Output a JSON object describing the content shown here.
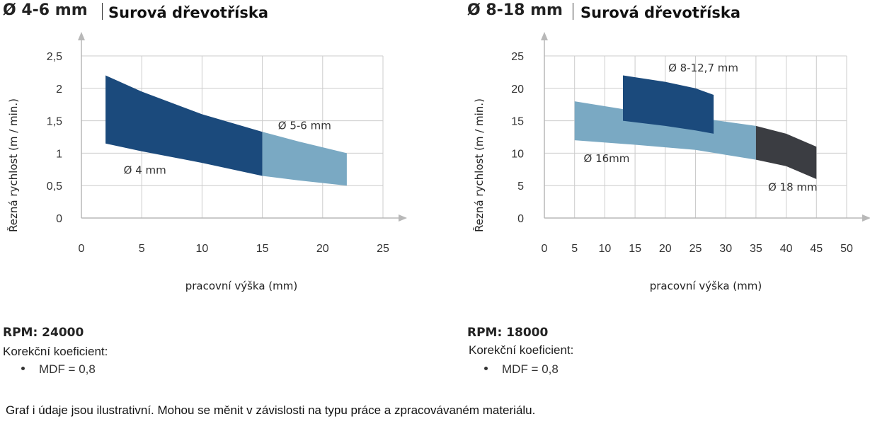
{
  "left": {
    "diameter": "Ø 4-6 mm",
    "material": "Surová dřevotříska",
    "rpm": "RPM: 24000",
    "coef_label": "Korekční koeficient:",
    "coef_items": [
      "MDF = 0,8"
    ]
  },
  "right": {
    "diameter": "Ø 8-18 mm",
    "material": "Surová dřevotříska",
    "rpm": "RPM: 18000",
    "coef_label": "Korekční koeficient:",
    "coef_items": [
      "MDF = 0,8"
    ]
  },
  "footnote": "Graf i údaje jsou ilustrativní. Mohou se měnit v závislosti na typu práce a zpracovávaném materiálu.",
  "colors": {
    "dark_blue": "#1b4a7c",
    "light_blue": "#7aa9c3",
    "dark_gray": "#3b3d42",
    "grid": "#cccccc",
    "axis": "#b8b8b8"
  },
  "chart_data": [
    {
      "type": "area",
      "xlabel": "pracovní výška  (mm)",
      "ylabel": "Řezná rychlost  (m / min.)",
      "xlim": [
        0,
        25
      ],
      "ylim": [
        0,
        2.5
      ],
      "x_ticks": [
        0,
        5,
        10,
        15,
        20,
        25
      ],
      "x_tick_labels": [
        "0",
        "5",
        "10",
        "15",
        "20",
        "25"
      ],
      "y_ticks": [
        0,
        0.5,
        1,
        1.5,
        2,
        2.5
      ],
      "y_tick_labels": [
        "0",
        "0,5",
        "1",
        "1,5",
        "2",
        "2,5"
      ],
      "grid": true,
      "series": [
        {
          "name": "Ø 4 mm",
          "color": "#1b4a7c",
          "x": [
            2,
            5,
            10,
            15
          ],
          "upper": [
            2.2,
            1.95,
            1.6,
            1.33
          ],
          "lower": [
            1.15,
            1.03,
            0.85,
            0.65
          ]
        },
        {
          "name": "Ø 5-6 mm",
          "color": "#7aa9c3",
          "x": [
            15,
            18,
            22
          ],
          "upper": [
            1.33,
            1.18,
            1.0
          ],
          "lower": [
            0.65,
            0.58,
            0.5
          ]
        }
      ]
    },
    {
      "type": "area",
      "xlabel": "pracovní výška  (mm)",
      "ylabel": "Řezná rychlost  (m / min.)",
      "xlim": [
        0,
        50
      ],
      "ylim": [
        0,
        25
      ],
      "x_ticks": [
        0,
        5,
        10,
        15,
        20,
        25,
        30,
        35,
        40,
        45,
        50
      ],
      "x_tick_labels": [
        "0",
        "5",
        "10",
        "15",
        "20",
        "25",
        "30",
        "35",
        "40",
        "45",
        "50"
      ],
      "y_ticks": [
        0,
        5,
        10,
        15,
        20,
        25
      ],
      "y_tick_labels": [
        "0",
        "5",
        "10",
        "15",
        "20",
        "25"
      ],
      "grid": true,
      "series": [
        {
          "name": "Ø 16mm",
          "color": "#7aa9c3",
          "x": [
            5,
            15,
            25,
            35
          ],
          "upper": [
            18,
            16.5,
            15.5,
            14.2
          ],
          "lower": [
            12,
            11.3,
            10.5,
            9.0
          ]
        },
        {
          "name": "Ø 18 mm",
          "color": "#3b3d42",
          "x": [
            35,
            40,
            45
          ],
          "upper": [
            14.2,
            13,
            11.0
          ],
          "lower": [
            9.0,
            8.0,
            6.0
          ]
        },
        {
          "name": "Ø 8-12,7 mm",
          "color": "#1b4a7c",
          "x": [
            13,
            20,
            25,
            28
          ],
          "upper": [
            22,
            21,
            20,
            19
          ],
          "lower": [
            15,
            14.2,
            13.5,
            13
          ]
        }
      ]
    }
  ]
}
